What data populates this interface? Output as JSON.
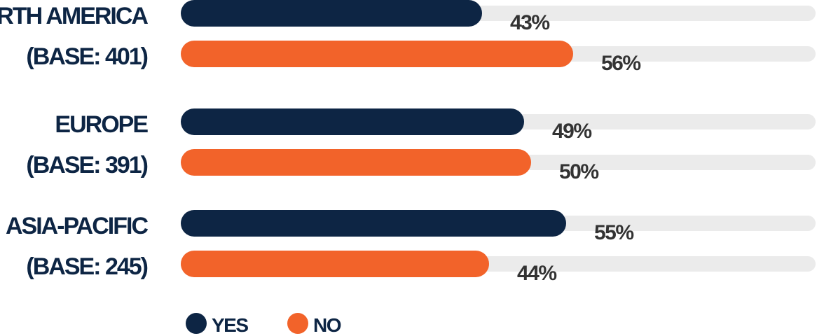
{
  "chart_data": {
    "type": "bar",
    "orientation": "horizontal",
    "value_unit": "%",
    "xlim": [
      0,
      100
    ],
    "grid": false,
    "legend_position": "bottom",
    "colors": {
      "yes": "#0d2544",
      "no": "#f2632a",
      "track": "#ebebeb",
      "label_text": "#0d2544",
      "value_text": "#333333"
    },
    "categories": [
      {
        "line1": "NORTH AMERICA",
        "line2": "(BASE: 401)"
      },
      {
        "line1": "EUROPE",
        "line2": "(BASE: 391)"
      },
      {
        "line1": "ASIA-PACIFIC",
        "line2": "(BASE: 245)"
      }
    ],
    "series": [
      {
        "key": "yes",
        "name": "YES",
        "values": [
          43,
          49,
          55
        ],
        "labels": [
          "43%",
          "49%",
          "55%"
        ]
      },
      {
        "key": "no",
        "name": "NO",
        "values": [
          56,
          50,
          44
        ],
        "labels": [
          "56%",
          "50%",
          "44%"
        ]
      }
    ]
  }
}
